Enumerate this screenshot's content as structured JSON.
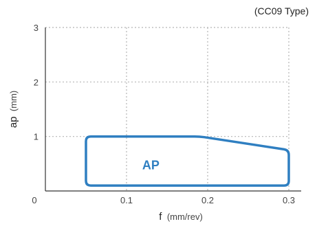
{
  "chart_data": {
    "type": "area",
    "annotation": "(CC09 Type)",
    "xlabel": "f",
    "xlabel_unit": "(mm/rev)",
    "ylabel": "ap",
    "ylabel_unit": "(mm)",
    "origin_label": "0",
    "xlim": [
      0,
      0.3
    ],
    "ylim": [
      0,
      3
    ],
    "x_ticks": [
      0.1,
      0.2,
      0.3
    ],
    "x_tick_labels": [
      "0.1",
      "0.2",
      "0.3"
    ],
    "y_ticks": [
      1,
      2,
      3
    ],
    "y_tick_labels": [
      "1",
      "2",
      "3"
    ],
    "grid": true,
    "region": {
      "label": "AP",
      "color": "#2f7fc1",
      "boundary": [
        {
          "f": 0.05,
          "ap": 0.1
        },
        {
          "f": 0.05,
          "ap": 1.0
        },
        {
          "f": 0.19,
          "ap": 1.0
        },
        {
          "f": 0.3,
          "ap": 0.75
        },
        {
          "f": 0.3,
          "ap": 0.1
        }
      ]
    }
  }
}
